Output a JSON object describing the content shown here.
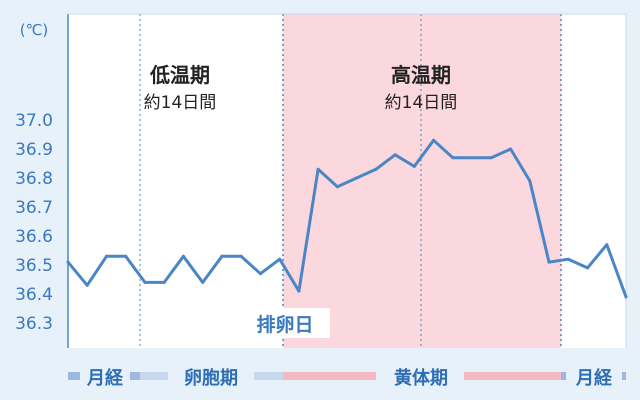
{
  "chart_data": {
    "type": "line",
    "unit_label": "(℃)",
    "ylim": [
      36.2,
      37.1
    ],
    "yticks": [
      "37.0",
      "36.9",
      "36.8",
      "36.7",
      "36.6",
      "36.5",
      "36.4",
      "36.3"
    ],
    "x": [
      0,
      1,
      2,
      3,
      4,
      5,
      6,
      7,
      8,
      9,
      10,
      11,
      12,
      13,
      14,
      15,
      16,
      17,
      18,
      19,
      20,
      21,
      22,
      23,
      24,
      25,
      26,
      27,
      28,
      29
    ],
    "values": [
      36.51,
      36.43,
      36.53,
      36.53,
      36.44,
      36.44,
      36.53,
      36.44,
      36.53,
      36.53,
      36.47,
      36.52,
      36.41,
      36.83,
      36.77,
      36.8,
      36.83,
      36.88,
      36.84,
      36.93,
      36.87,
      36.87,
      36.87,
      36.9,
      36.79,
      36.51,
      36.52,
      36.49,
      36.57,
      36.39
    ],
    "ovulation_label": "排卵日",
    "phases": [
      {
        "title": "低温期",
        "subtitle": "約14日間"
      },
      {
        "title": "高温期",
        "subtitle": "約14日間"
      }
    ],
    "bottom_phases": [
      "月経",
      "卵胞期",
      "黄体期",
      "月経"
    ],
    "colors": {
      "line": "#4a86c5",
      "high_bg": "#fbd8de",
      "menses_bar": "#9eb9dd",
      "follicular_bar": "#c7d7ec",
      "luteal_bar": "#f6b8c2",
      "tick_text": "#3a78c0"
    }
  }
}
